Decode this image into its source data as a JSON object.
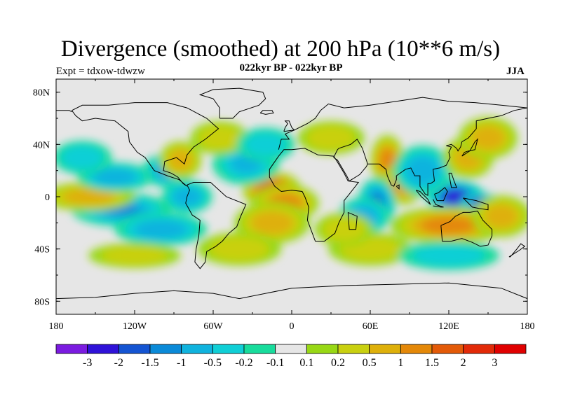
{
  "header": {
    "title": "Divergence (smoothed) at 200 hPa (10**6 m/s)",
    "subtitle": "022kyr BP - 022kyr BP",
    "expt": "Expt = tdxow-tdwzw",
    "season": "JJA"
  },
  "colors": {
    "neutral": "#e6e6e6",
    "coast": "#000000",
    "levels": [
      "#7b1be0",
      "#2f12d8",
      "#1454d2",
      "#0a8ad8",
      "#10b3de",
      "#10cfd6",
      "#18dc9c",
      "#e6e6e6",
      "#98d815",
      "#c9d010",
      "#deb00a",
      "#e48808",
      "#e35a08",
      "#e22a08",
      "#e00000"
    ]
  },
  "chart_data": {
    "type": "heatmap",
    "title": "Divergence (smoothed) at 200 hPa (10**6 m/s)",
    "subtitle": "022kyr BP - 022kyr BP",
    "xlabel": "",
    "ylabel": "",
    "xlim": [
      -180,
      180
    ],
    "ylim": [
      -90,
      90
    ],
    "x_ticks": [
      "180",
      "120W",
      "60W",
      "0",
      "60E",
      "120E",
      "180"
    ],
    "y_ticks": [
      "80N",
      "40N",
      "0",
      "40S",
      "80S"
    ],
    "colorbar_labels": [
      "-3",
      "-2",
      "-1.5",
      "-1",
      "-0.5",
      "-0.2",
      "-0.1",
      "0.1",
      "0.2",
      "0.5",
      "1",
      "1.5",
      "2",
      "3"
    ],
    "features": [
      {
        "lon": -15,
        "lat": 5,
        "value": 2.2,
        "rx": 14,
        "ry": 9
      },
      {
        "lon": -5,
        "lat": -5,
        "value": 1.5,
        "rx": 16,
        "ry": 9
      },
      {
        "lon": -15,
        "lat": -20,
        "value": 0.6,
        "rx": 18,
        "ry": 10
      },
      {
        "lon": 73,
        "lat": 28,
        "value": 1.5,
        "rx": 8,
        "ry": 12
      },
      {
        "lon": 85,
        "lat": 10,
        "value": 1.2,
        "rx": 10,
        "ry": 10
      },
      {
        "lon": 65,
        "lat": -5,
        "value": -1.5,
        "rx": 9,
        "ry": 12
      },
      {
        "lon": 55,
        "lat": -15,
        "value": -0.8,
        "rx": 12,
        "ry": 9
      },
      {
        "lon": 125,
        "lat": 0,
        "value": -2.5,
        "rx": 14,
        "ry": 8
      },
      {
        "lon": 145,
        "lat": -5,
        "value": -3.0,
        "rx": 10,
        "ry": 5
      },
      {
        "lon": 100,
        "lat": 20,
        "value": -0.8,
        "rx": 14,
        "ry": 12
      },
      {
        "lon": 120,
        "lat": -22,
        "value": 1.4,
        "rx": 28,
        "ry": 9
      },
      {
        "lon": 160,
        "lat": -15,
        "value": 0.9,
        "rx": 14,
        "ry": 10
      },
      {
        "lon": 135,
        "lat": 30,
        "value": 1.0,
        "rx": 12,
        "ry": 10
      },
      {
        "lon": 150,
        "lat": 45,
        "value": 0.8,
        "rx": 14,
        "ry": 10
      },
      {
        "lon": -95,
        "lat": 20,
        "value": -1.0,
        "rx": 12,
        "ry": 8
      },
      {
        "lon": -85,
        "lat": 28,
        "value": 1.0,
        "rx": 10,
        "ry": 9
      },
      {
        "lon": -80,
        "lat": 0,
        "value": -0.8,
        "rx": 12,
        "ry": 8
      },
      {
        "lon": -130,
        "lat": -10,
        "value": -1.0,
        "rx": 24,
        "ry": 8
      },
      {
        "lon": -100,
        "lat": -25,
        "value": -0.8,
        "rx": 22,
        "ry": 8
      },
      {
        "lon": -155,
        "lat": 0,
        "value": 0.9,
        "rx": 22,
        "ry": 7
      },
      {
        "lon": -135,
        "lat": 15,
        "value": -0.6,
        "rx": 18,
        "ry": 7
      },
      {
        "lon": -35,
        "lat": 25,
        "value": -0.5,
        "rx": 16,
        "ry": 10
      },
      {
        "lon": -55,
        "lat": 45,
        "value": 0.4,
        "rx": 14,
        "ry": 8
      },
      {
        "lon": -40,
        "lat": -40,
        "value": 0.3,
        "rx": 20,
        "ry": 8
      },
      {
        "lon": 60,
        "lat": -40,
        "value": 0.3,
        "rx": 20,
        "ry": 8
      },
      {
        "lon": 120,
        "lat": -45,
        "value": -0.3,
        "rx": 24,
        "ry": 7
      },
      {
        "lon": -120,
        "lat": -45,
        "value": 0.3,
        "rx": 22,
        "ry": 6
      },
      {
        "lon": 30,
        "lat": 45,
        "value": 0.3,
        "rx": 16,
        "ry": 8
      },
      {
        "lon": -160,
        "lat": 30,
        "value": -0.4,
        "rx": 14,
        "ry": 8
      },
      {
        "lon": -20,
        "lat": 40,
        "value": -0.4,
        "rx": 14,
        "ry": 8
      },
      {
        "lon": 40,
        "lat": -25,
        "value": 0.4,
        "rx": 14,
        "ry": 8
      }
    ]
  }
}
